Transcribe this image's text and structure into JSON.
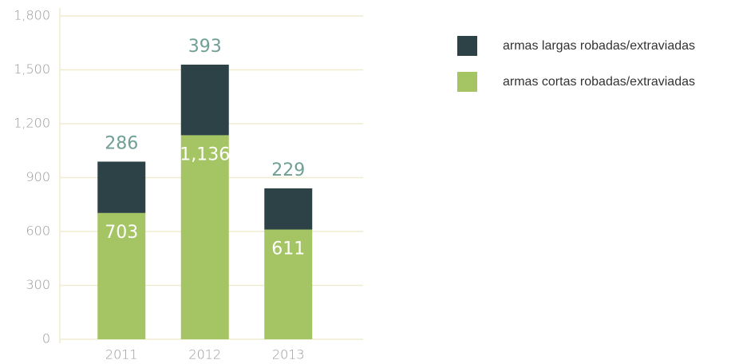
{
  "chart_data": {
    "type": "stacked_bar",
    "categories": [
      "2011",
      "2012",
      "2013"
    ],
    "series": [
      {
        "name": "armas cortas robadas/extraviadas",
        "color": "#a5c464",
        "values": [
          703,
          1136,
          611
        ],
        "value_labels": [
          "703",
          "1,136",
          "611"
        ]
      },
      {
        "name": "armas largas robadas/extraviadas",
        "color": "#2d4247",
        "values": [
          286,
          393,
          229
        ]
      }
    ],
    "ylim": [
      0,
      1800
    ],
    "yticks": [
      0,
      300,
      600,
      900,
      {
        "value": 1200,
        "label": "1,200"
      },
      {
        "value": 1500,
        "label": "1,500"
      },
      {
        "value": 1800,
        "label": "1,800"
      }
    ],
    "grid": true
  }
}
